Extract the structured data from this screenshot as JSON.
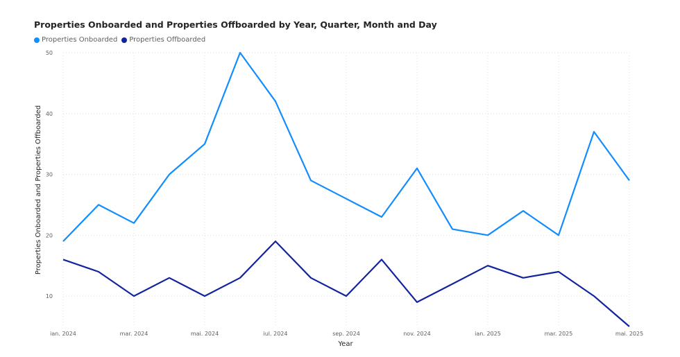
{
  "chart_data": {
    "type": "line",
    "title": "Properties Onboarded and Properties Offboarded by Year, Quarter, Month and Day",
    "xlabel": "Year",
    "ylabel": "Properties Onboarded and Properties Offboarded",
    "x": [
      "ian. 2024",
      "feb. 2024",
      "mar. 2024",
      "apr. 2024",
      "mai. 2024",
      "iun. 2024",
      "iul. 2024",
      "aug. 2024",
      "sep. 2024",
      "oct. 2024",
      "nov. 2024",
      "dec. 2024",
      "ian. 2025",
      "feb. 2025",
      "mar. 2025",
      "apr. 2025",
      "mai. 2025"
    ],
    "x_tick_labels": [
      "ian. 2024",
      "mar. 2024",
      "mai. 2024",
      "iul. 2024",
      "sep. 2024",
      "nov. 2024",
      "ian. 2025",
      "mar. 2025",
      "mai. 2025"
    ],
    "y_ticks": [
      10,
      20,
      30,
      40,
      50
    ],
    "ylim": [
      5,
      50
    ],
    "grid": true,
    "legend_position": "top-left",
    "series": [
      {
        "name": "Properties Onboarded",
        "color": "#118dff",
        "values": [
          19,
          25,
          22,
          30,
          35,
          50,
          42,
          29,
          26,
          23,
          31,
          21,
          20,
          24,
          20,
          37,
          29
        ]
      },
      {
        "name": "Properties Offboarded",
        "color": "#12239e",
        "values": [
          16,
          14,
          10,
          13,
          10,
          13,
          19,
          13,
          10,
          16,
          9,
          12,
          15,
          13,
          14,
          10,
          5
        ]
      }
    ]
  }
}
